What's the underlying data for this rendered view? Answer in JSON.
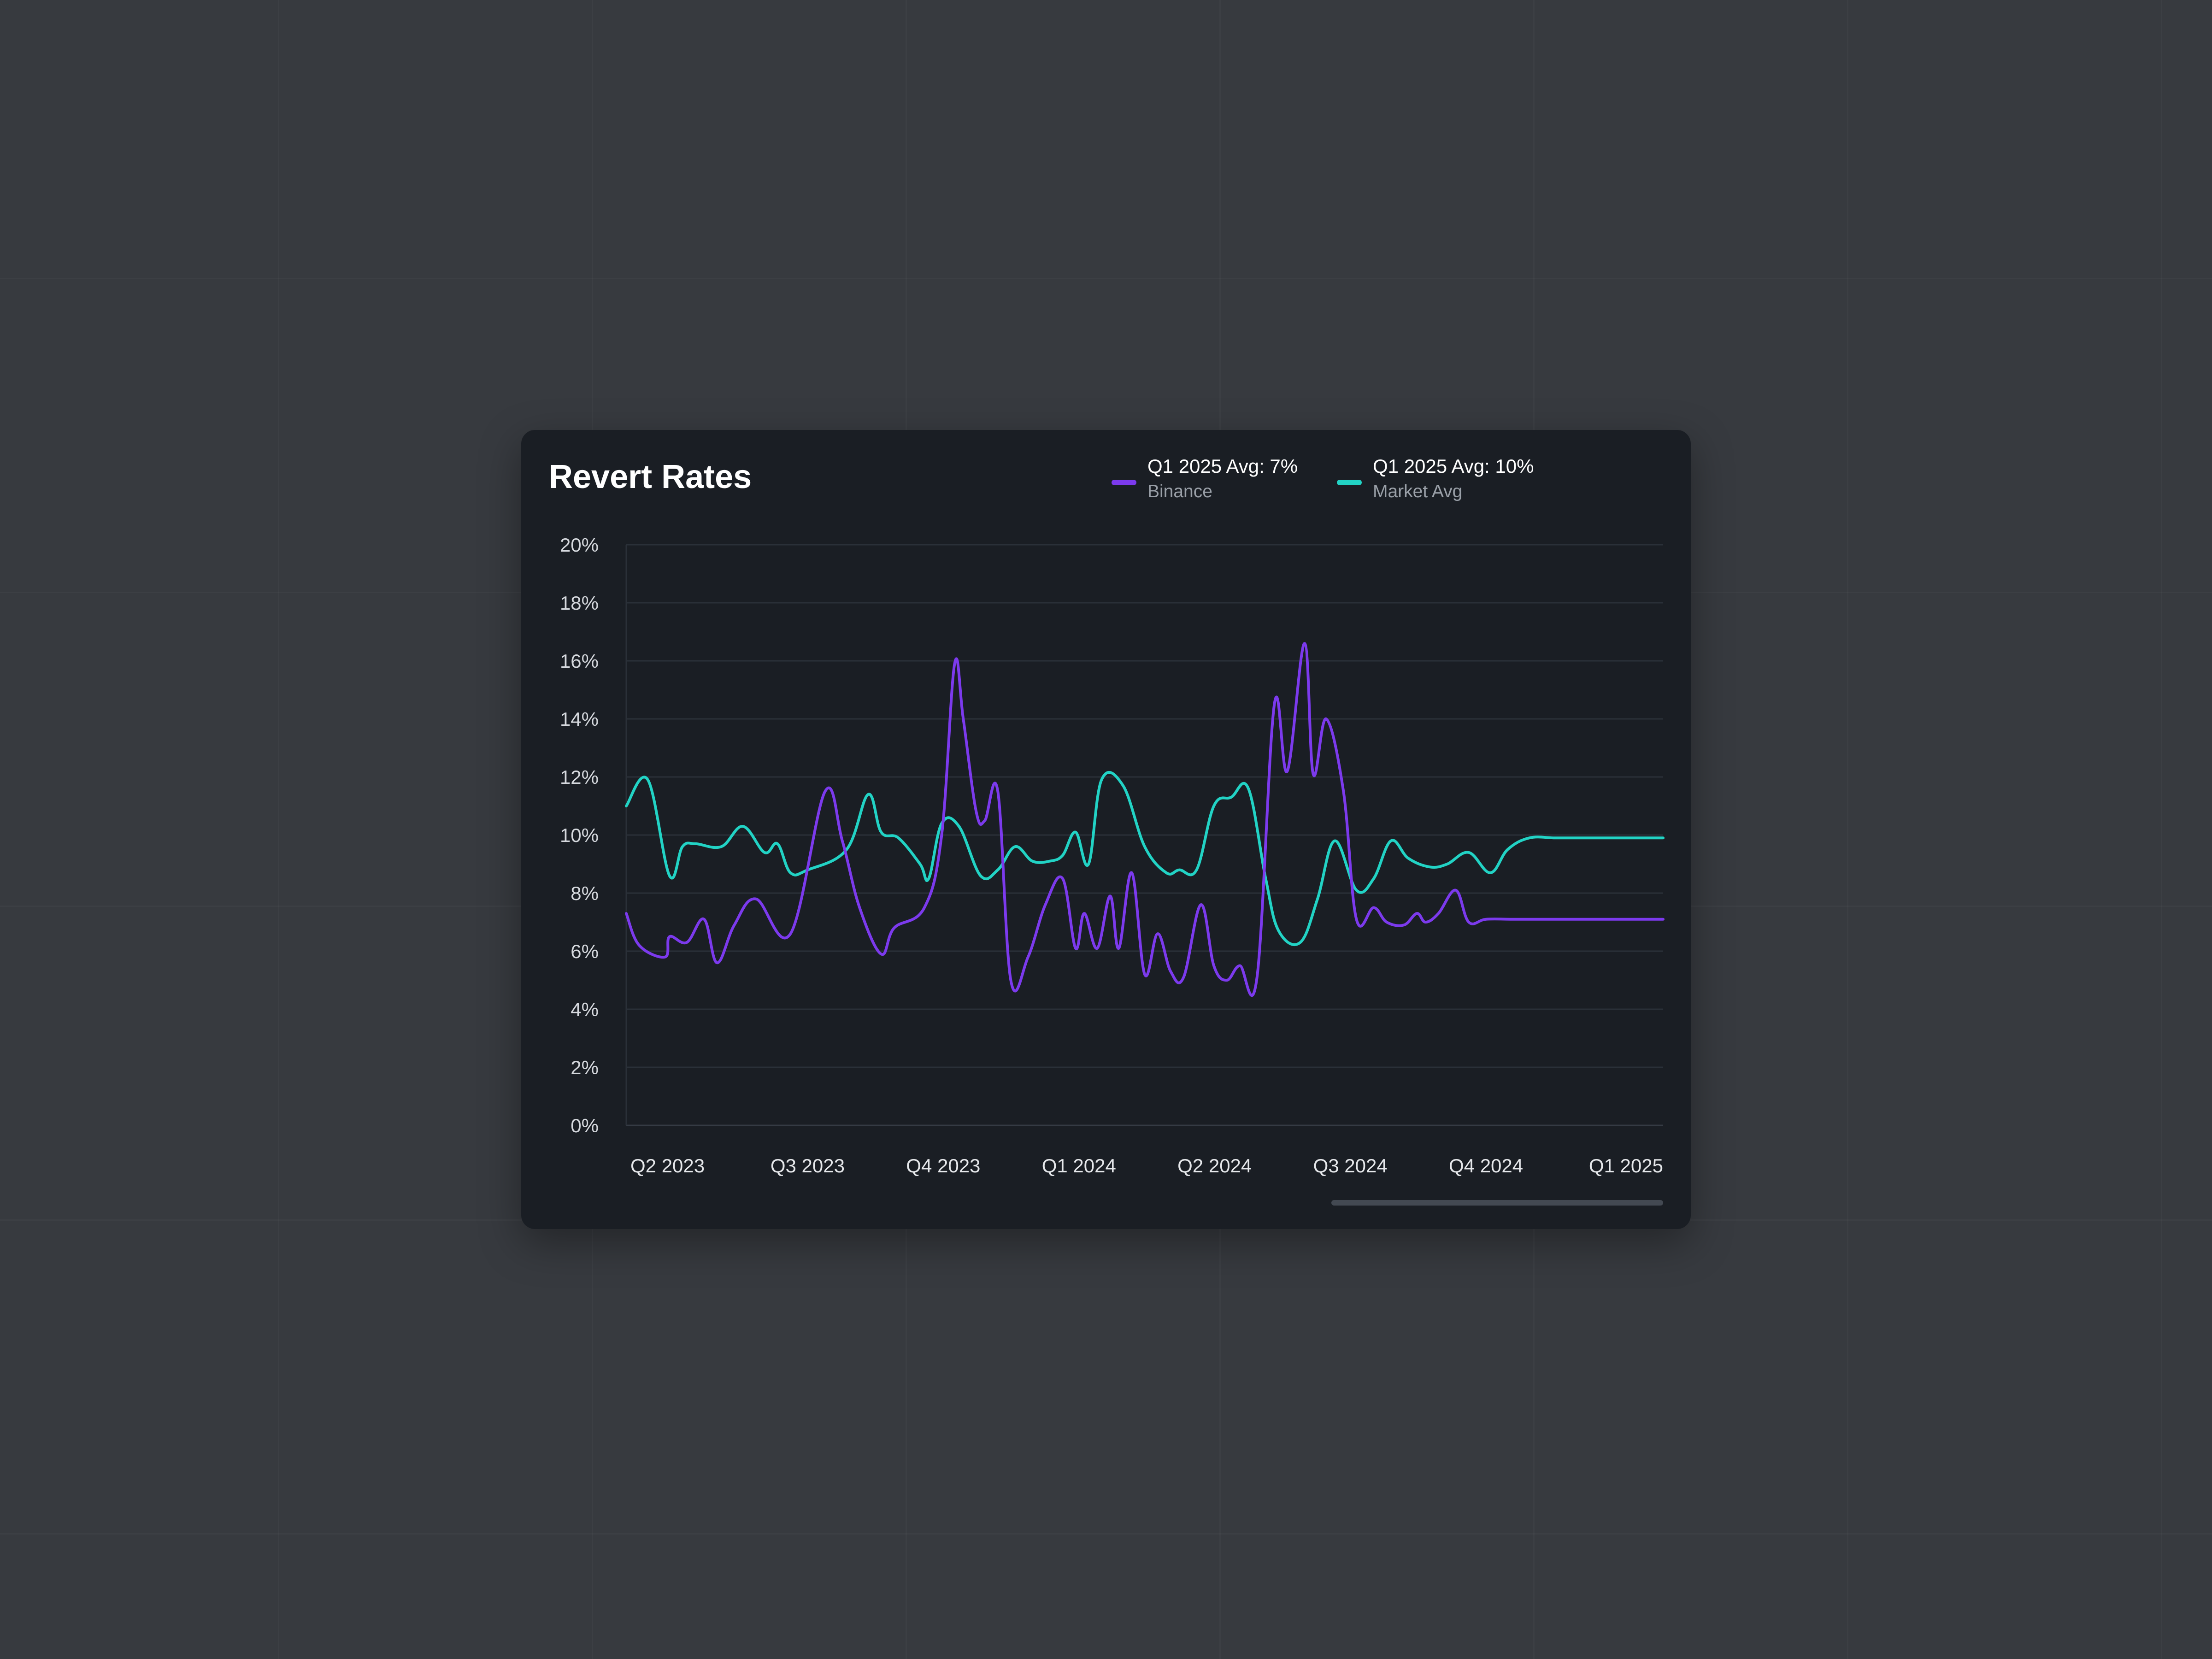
{
  "title": "Revert Rates",
  "legend": [
    {
      "label": "Q1 2025 Avg: 7%",
      "sublabel": "Binance",
      "color": "#7c3aed"
    },
    {
      "label": "Q1 2025 Avg: 10%",
      "sublabel": "Market Avg",
      "color": "#22d3c5"
    }
  ],
  "chart_data": {
    "type": "line",
    "title": "Revert Rates",
    "xlabel": "",
    "ylabel": "",
    "ylim": [
      0,
      20
    ],
    "y_ticks": [
      "0%",
      "2%",
      "4%",
      "6%",
      "8%",
      "10%",
      "12%",
      "14%",
      "16%",
      "18%",
      "20%"
    ],
    "y_tick_values": [
      0,
      2,
      4,
      6,
      8,
      10,
      12,
      14,
      16,
      18,
      20
    ],
    "x_range": [
      0,
      24
    ],
    "x_ticks": [
      "Q2 2023",
      "Q3 2023",
      "Q4 2023",
      "Q1 2024",
      "Q2 2024",
      "Q3 2024",
      "Q4 2024",
      "Q1 2025"
    ],
    "grid": true,
    "legend_position": "top-right",
    "series": [
      {
        "name": "Binance",
        "color": "#7c3aed",
        "x": [
          0,
          0.3,
          0.9,
          1.0,
          1.4,
          1.8,
          2.1,
          2.5,
          3.0,
          3.8,
          4.6,
          5.0,
          5.4,
          5.9,
          6.2,
          6.9,
          7.3,
          7.6,
          7.8,
          8.1,
          8.3,
          8.6,
          8.9,
          9.3,
          9.7,
          10.1,
          10.4,
          10.6,
          10.9,
          11.2,
          11.4,
          11.7,
          12.0,
          12.3,
          12.6,
          12.9,
          13.3,
          13.6,
          13.9,
          14.2,
          14.6,
          15.0,
          15.3,
          15.7,
          15.9,
          16.2,
          16.6,
          16.9,
          17.3,
          17.6,
          18.0,
          18.3,
          18.5,
          18.8,
          19.2,
          19.5,
          19.9,
          20.5,
          21.0,
          21.5,
          21.9,
          22.4,
          22.8,
          23.1,
          23.5,
          24.0
        ],
        "values": [
          7.3,
          6.2,
          5.8,
          6.5,
          6.3,
          7.1,
          5.6,
          6.9,
          7.8,
          6.6,
          11.5,
          9.8,
          7.5,
          5.9,
          6.8,
          7.5,
          10.0,
          15.9,
          14.0,
          10.8,
          10.5,
          11.5,
          5.0,
          5.8,
          7.6,
          8.5,
          6.1,
          7.3,
          6.1,
          7.9,
          6.1,
          8.7,
          5.2,
          6.6,
          5.3,
          5.1,
          7.6,
          5.5,
          5.0,
          5.5,
          5.1,
          14.5,
          12.2,
          16.6,
          12.1,
          14.0,
          11.5,
          7.1,
          7.5,
          7.0,
          6.9,
          7.3,
          7.0,
          7.3,
          8.1,
          7.0,
          7.1,
          7.1,
          7.1,
          7.1,
          7.1,
          7.1,
          7.1,
          7.1,
          7.1,
          7.1
        ]
      },
      {
        "name": "Market Avg",
        "color": "#22d3c5",
        "x": [
          0,
          0.5,
          1.0,
          1.3,
          1.6,
          2.2,
          2.7,
          3.2,
          3.5,
          3.8,
          4.2,
          5.1,
          5.6,
          5.9,
          6.3,
          6.8,
          7.0,
          7.3,
          7.7,
          8.2,
          8.6,
          9.0,
          9.4,
          9.8,
          10.1,
          10.4,
          10.7,
          11.0,
          11.5,
          12.0,
          12.5,
          12.8,
          13.2,
          13.6,
          14.0,
          14.4,
          14.8,
          15.1,
          15.6,
          16.0,
          16.4,
          16.9,
          17.3,
          17.7,
          18.1,
          18.6,
          19.0,
          19.5,
          20.0,
          20.4,
          20.9,
          21.5,
          22.0,
          22.5,
          23.0,
          23.5,
          24.0
        ],
        "values": [
          11.0,
          11.9,
          8.6,
          9.6,
          9.7,
          9.6,
          10.3,
          9.4,
          9.7,
          8.7,
          8.8,
          9.5,
          11.4,
          10.1,
          9.9,
          9.0,
          8.5,
          10.4,
          10.3,
          8.6,
          8.8,
          9.6,
          9.1,
          9.1,
          9.3,
          10.1,
          9.0,
          11.9,
          11.7,
          9.6,
          8.7,
          8.8,
          8.8,
          11.0,
          11.3,
          11.6,
          8.5,
          6.7,
          6.3,
          7.8,
          9.8,
          8.1,
          8.5,
          9.8,
          9.2,
          8.9,
          9.0,
          9.4,
          8.7,
          9.5,
          9.9,
          9.9,
          9.9,
          9.9,
          9.9,
          9.9,
          9.9
        ]
      }
    ]
  }
}
